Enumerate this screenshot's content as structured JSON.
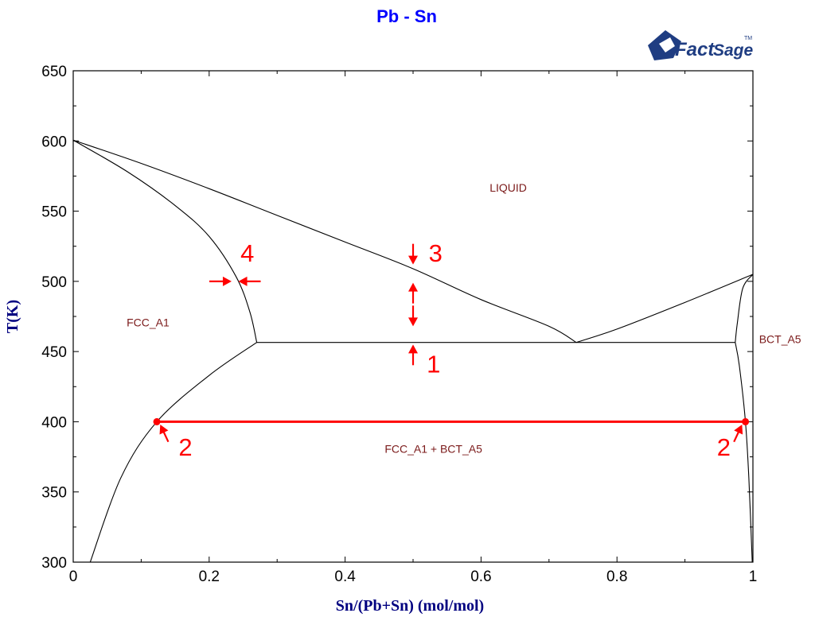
{
  "chart_data": {
    "type": "phase-diagram",
    "title": "Pb - Sn",
    "xlabel": "Sn/(Pb+Sn) (mol/mol)",
    "ylabel": "T(K)",
    "xlim": [
      0,
      1
    ],
    "ylim": [
      300,
      650
    ],
    "x_ticks": [
      "0",
      "0.2",
      "0.4",
      "0.6",
      "0.8",
      "1"
    ],
    "x_tick_values": [
      0,
      0.2,
      0.4,
      0.6,
      0.8,
      1.0
    ],
    "y_ticks": [
      "300",
      "350",
      "400",
      "450",
      "500",
      "550",
      "600",
      "650"
    ],
    "y_tick_values": [
      300,
      350,
      400,
      450,
      500,
      550,
      600,
      650
    ],
    "grid": false,
    "phase_boundaries": [
      {
        "name": "liquidus-pb",
        "points": [
          [
            0,
            600.6
          ],
          [
            0.1,
            584
          ],
          [
            0.2,
            566
          ],
          [
            0.3,
            547
          ],
          [
            0.4,
            528
          ],
          [
            0.5,
            509
          ],
          [
            0.6,
            487
          ],
          [
            0.7,
            468
          ],
          [
            0.74,
            456.5
          ]
        ]
      },
      {
        "name": "liquidus-sn",
        "points": [
          [
            0.74,
            456.5
          ],
          [
            0.8,
            466
          ],
          [
            0.9,
            485
          ],
          [
            1.0,
            505
          ]
        ]
      },
      {
        "name": "solidus-pb",
        "points": [
          [
            0,
            600.6
          ],
          [
            0.08,
            578
          ],
          [
            0.15,
            554
          ],
          [
            0.2,
            532
          ],
          [
            0.24,
            503
          ],
          [
            0.26,
            478
          ],
          [
            0.27,
            456.5
          ]
        ]
      },
      {
        "name": "solvus-pb",
        "points": [
          [
            0.27,
            456.5
          ],
          [
            0.2,
            433
          ],
          [
            0.123,
            400
          ],
          [
            0.07,
            360
          ],
          [
            0.025,
            300
          ]
        ]
      },
      {
        "name": "eutectic",
        "points": [
          [
            0.27,
            456.5
          ],
          [
            0.974,
            456.5
          ]
        ]
      },
      {
        "name": "solidus-sn",
        "points": [
          [
            1.0,
            505
          ],
          [
            0.985,
            495
          ],
          [
            0.977,
            470
          ],
          [
            0.974,
            456.5
          ]
        ]
      },
      {
        "name": "solvus-sn",
        "points": [
          [
            0.974,
            456.5
          ],
          [
            0.98,
            440
          ],
          [
            0.989,
            400
          ],
          [
            0.994,
            360
          ],
          [
            0.999,
            300
          ]
        ]
      }
    ],
    "tie_line": {
      "x1": 0.123,
      "x2": 0.989,
      "y": 400,
      "color": "#ff0000"
    },
    "regions": [
      {
        "label": "LIQUID",
        "x": 0.64,
        "y": 564
      },
      {
        "label": "FCC_A1",
        "x": 0.11,
        "y": 468
      },
      {
        "label": "BCT_A5",
        "x": 1.04,
        "y": 456
      },
      {
        "label": "FCC_A1 + BCT_A5",
        "x": 0.53,
        "y": 378
      }
    ],
    "callouts": [
      {
        "label": "1",
        "x": 0.52,
        "y": 435
      },
      {
        "label": "2",
        "x": 0.155,
        "y": 376
      },
      {
        "label": "2",
        "x": 0.947,
        "y": 376
      },
      {
        "label": "3",
        "x": 0.523,
        "y": 514
      },
      {
        "label": "4",
        "x": 0.246,
        "y": 514
      }
    ],
    "colors": {
      "title": "#0000ff",
      "axis_label": "#000080",
      "region_label": "#7b1a1a",
      "annotation": "#ff0000",
      "curve": "#000000"
    }
  },
  "logo": {
    "name": "FactSage",
    "text_a": "Fact",
    "text_b": "Sage",
    "tm": "TM",
    "color": "#1f3d82"
  }
}
